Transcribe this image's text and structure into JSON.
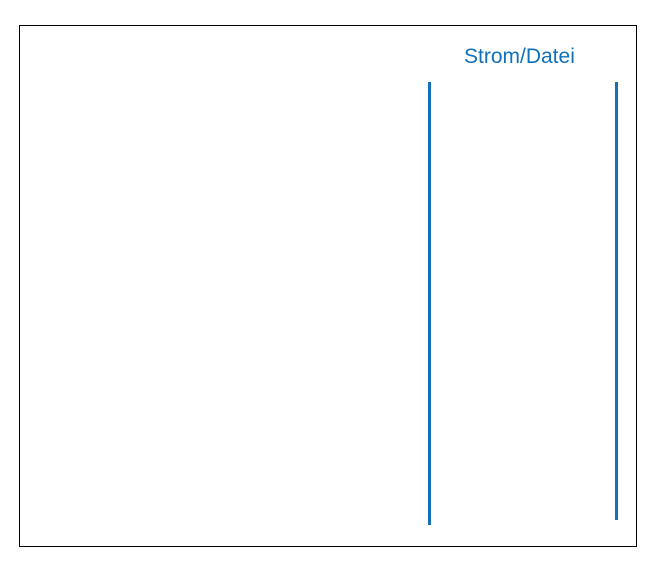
{
  "diagram": {
    "label": "Strom/Datei",
    "colors": {
      "accent": "#1271b8",
      "frame": "#000000",
      "background": "#ffffff"
    }
  }
}
